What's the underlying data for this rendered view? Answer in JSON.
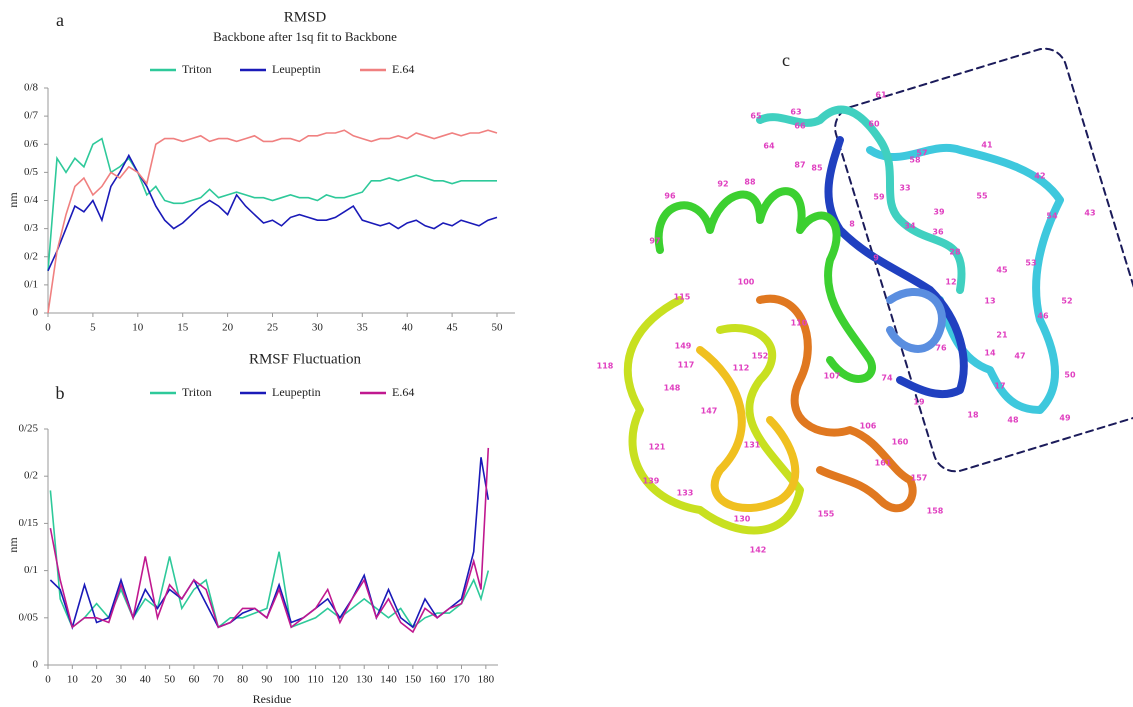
{
  "chart_data": [
    {
      "type": "line",
      "panel_label": "a",
      "title": "RMSD",
      "subtitle": "Backbone after 1sq fit to Backbone",
      "ylabel": "nm",
      "legend": "top-center",
      "grid": false,
      "x": [
        0,
        1,
        2,
        3,
        4,
        5,
        6,
        7,
        8,
        9,
        10,
        11,
        12,
        13,
        14,
        15,
        16,
        17,
        18,
        19,
        20,
        21,
        22,
        23,
        24,
        25,
        26,
        27,
        28,
        29,
        30,
        31,
        32,
        33,
        34,
        35,
        36,
        37,
        38,
        39,
        40,
        41,
        42,
        43,
        44,
        45,
        46,
        47,
        48,
        49,
        50
      ],
      "xlim": [
        0,
        52
      ],
      "xticks": [
        0,
        5,
        10,
        15,
        20,
        25,
        30,
        35,
        40,
        45,
        50
      ],
      "ylim": [
        0,
        0.8
      ],
      "yticks": [
        0,
        {
          "value": 0.1,
          "label": "0/1"
        },
        {
          "value": 0.2,
          "label": "0/2"
        },
        {
          "value": 0.3,
          "label": "0/3"
        },
        {
          "value": 0.4,
          "label": "0/4"
        },
        {
          "value": 0.5,
          "label": "0/5"
        },
        {
          "value": 0.6,
          "label": "0/6"
        },
        {
          "value": 0.7,
          "label": "0/7"
        },
        {
          "value": 0.8,
          "label": "0/8"
        }
      ],
      "series": [
        {
          "name": "Triton",
          "color": "#2ec99a",
          "values": [
            0.15,
            0.55,
            0.5,
            0.55,
            0.52,
            0.6,
            0.62,
            0.5,
            0.52,
            0.55,
            0.5,
            0.42,
            0.45,
            0.4,
            0.39,
            0.39,
            0.4,
            0.41,
            0.44,
            0.41,
            0.42,
            0.43,
            0.42,
            0.41,
            0.41,
            0.4,
            0.41,
            0.42,
            0.41,
            0.41,
            0.4,
            0.42,
            0.41,
            0.41,
            0.42,
            0.43,
            0.47,
            0.47,
            0.48,
            0.47,
            0.48,
            0.49,
            0.48,
            0.47,
            0.47,
            0.46,
            0.47,
            0.47,
            0.47,
            0.47,
            0.47
          ]
        },
        {
          "name": "Leupeptin",
          "color": "#1a1ab8",
          "values": [
            0.15,
            0.22,
            0.3,
            0.38,
            0.36,
            0.4,
            0.33,
            0.45,
            0.5,
            0.56,
            0.5,
            0.45,
            0.38,
            0.33,
            0.3,
            0.32,
            0.35,
            0.38,
            0.4,
            0.38,
            0.35,
            0.42,
            0.38,
            0.35,
            0.32,
            0.33,
            0.31,
            0.34,
            0.35,
            0.34,
            0.33,
            0.33,
            0.34,
            0.36,
            0.38,
            0.33,
            0.32,
            0.31,
            0.32,
            0.3,
            0.32,
            0.33,
            0.31,
            0.3,
            0.32,
            0.31,
            0.33,
            0.32,
            0.31,
            0.33,
            0.34
          ]
        },
        {
          "name": "E.64",
          "color": "#f08080",
          "values": [
            0.0,
            0.22,
            0.35,
            0.45,
            0.48,
            0.42,
            0.45,
            0.5,
            0.48,
            0.52,
            0.5,
            0.46,
            0.6,
            0.62,
            0.62,
            0.61,
            0.62,
            0.63,
            0.61,
            0.62,
            0.62,
            0.61,
            0.62,
            0.63,
            0.61,
            0.61,
            0.62,
            0.62,
            0.61,
            0.63,
            0.63,
            0.64,
            0.64,
            0.65,
            0.63,
            0.62,
            0.61,
            0.62,
            0.62,
            0.63,
            0.62,
            0.64,
            0.63,
            0.62,
            0.63,
            0.64,
            0.63,
            0.64,
            0.64,
            0.65,
            0.64
          ]
        }
      ]
    },
    {
      "type": "line",
      "panel_label": "b",
      "title": "RMSF Fluctuation",
      "ylabel": "nm",
      "xlabel": "Residue",
      "legend": "top-center",
      "grid": false,
      "x": [
        1,
        5,
        10,
        15,
        20,
        25,
        30,
        35,
        40,
        45,
        50,
        55,
        60,
        65,
        70,
        75,
        80,
        85,
        90,
        95,
        100,
        105,
        110,
        115,
        120,
        125,
        130,
        135,
        140,
        145,
        150,
        155,
        160,
        165,
        170,
        175,
        178,
        181
      ],
      "xlim": [
        0,
        185
      ],
      "xticks": [
        0,
        10,
        20,
        30,
        40,
        50,
        60,
        70,
        80,
        90,
        100,
        110,
        120,
        130,
        140,
        150,
        160,
        170,
        180
      ],
      "ylim": [
        0,
        0.25
      ],
      "yticks": [
        0,
        {
          "value": 0.05,
          "label": "0/05"
        },
        {
          "value": 0.1,
          "label": "0/1"
        },
        {
          "value": 0.15,
          "label": "0/15"
        },
        {
          "value": 0.2,
          "label": "0/2"
        },
        {
          "value": 0.25,
          "label": "0/25"
        }
      ],
      "series": [
        {
          "name": "Triton",
          "color": "#2ec99a",
          "values": [
            0.185,
            0.07,
            0.04,
            0.05,
            0.065,
            0.05,
            0.08,
            0.05,
            0.07,
            0.06,
            0.115,
            0.06,
            0.08,
            0.09,
            0.04,
            0.05,
            0.05,
            0.055,
            0.06,
            0.12,
            0.04,
            0.045,
            0.05,
            0.06,
            0.05,
            0.06,
            0.07,
            0.06,
            0.05,
            0.06,
            0.04,
            0.05,
            0.055,
            0.055,
            0.065,
            0.09,
            0.07,
            0.1
          ]
        },
        {
          "name": "Leupeptin",
          "color": "#1a1ab8",
          "values": [
            0.09,
            0.08,
            0.04,
            0.085,
            0.045,
            0.05,
            0.09,
            0.05,
            0.08,
            0.06,
            0.08,
            0.07,
            0.09,
            0.065,
            0.04,
            0.045,
            0.055,
            0.06,
            0.05,
            0.085,
            0.045,
            0.05,
            0.06,
            0.07,
            0.05,
            0.07,
            0.095,
            0.05,
            0.08,
            0.05,
            0.04,
            0.07,
            0.05,
            0.06,
            0.07,
            0.12,
            0.22,
            0.175
          ]
        },
        {
          "name": "E.64",
          "color": "#c0188f",
          "values": [
            0.145,
            0.09,
            0.04,
            0.05,
            0.05,
            0.045,
            0.085,
            0.05,
            0.115,
            0.05,
            0.085,
            0.07,
            0.09,
            0.08,
            0.04,
            0.045,
            0.06,
            0.06,
            0.05,
            0.08,
            0.04,
            0.05,
            0.06,
            0.08,
            0.045,
            0.07,
            0.09,
            0.05,
            0.07,
            0.045,
            0.035,
            0.06,
            0.05,
            0.06,
            0.065,
            0.11,
            0.08,
            0.23
          ]
        }
      ]
    }
  ],
  "panel_c": {
    "label": "c",
    "residue_labels": [
      "61",
      "63",
      "65",
      "66",
      "60",
      "64",
      "87",
      "85",
      "57",
      "58",
      "41",
      "42",
      "33",
      "43",
      "96",
      "92",
      "88",
      "59",
      "55",
      "54",
      "39",
      "36",
      "34",
      "28",
      "8",
      "97",
      "9",
      "45",
      "53",
      "12",
      "13",
      "52",
      "115",
      "100",
      "110",
      "118",
      "21",
      "46",
      "14",
      "149",
      "117",
      "112",
      "47",
      "17",
      "50",
      "107",
      "148",
      "147",
      "19",
      "18",
      "48",
      "49",
      "106",
      "160",
      "131",
      "121",
      "161",
      "157",
      "139",
      "133",
      "130",
      "158",
      "155",
      "142",
      "74",
      "76",
      "152"
    ]
  }
}
